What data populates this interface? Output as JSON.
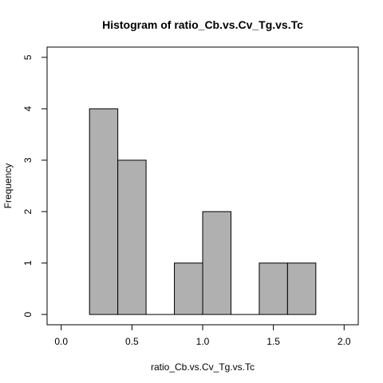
{
  "chart_data": {
    "type": "bar",
    "title": "Histogram of ratio_Cb.vs.Cv_Tg.vs.Tc",
    "xlabel": "ratio_Cb.vs.Cv_Tg.vs.Tc",
    "ylabel": "Frequency",
    "bins": [
      {
        "start": 0.2,
        "end": 0.4,
        "count": 4
      },
      {
        "start": 0.4,
        "end": 0.6,
        "count": 3
      },
      {
        "start": 0.6,
        "end": 0.8,
        "count": 0
      },
      {
        "start": 0.8,
        "end": 1.0,
        "count": 1
      },
      {
        "start": 1.0,
        "end": 1.2,
        "count": 2
      },
      {
        "start": 1.2,
        "end": 1.4,
        "count": 0
      },
      {
        "start": 1.4,
        "end": 1.6,
        "count": 1
      },
      {
        "start": 1.6,
        "end": 1.8,
        "count": 1
      }
    ],
    "xlim": [
      -0.1,
      2.1
    ],
    "ylim": [
      -0.2,
      5.2
    ],
    "xticks": [
      0.0,
      0.5,
      1.0,
      1.5,
      2.0
    ],
    "xtick_labels": [
      "0.0",
      "0.5",
      "1.0",
      "1.5",
      "2.0"
    ],
    "yticks": [
      0,
      1,
      2,
      3,
      4,
      5
    ],
    "ytick_labels": [
      "0",
      "1",
      "2",
      "3",
      "4",
      "5"
    ],
    "bar_color": "#b0b0b0",
    "grid": false,
    "box": true
  }
}
